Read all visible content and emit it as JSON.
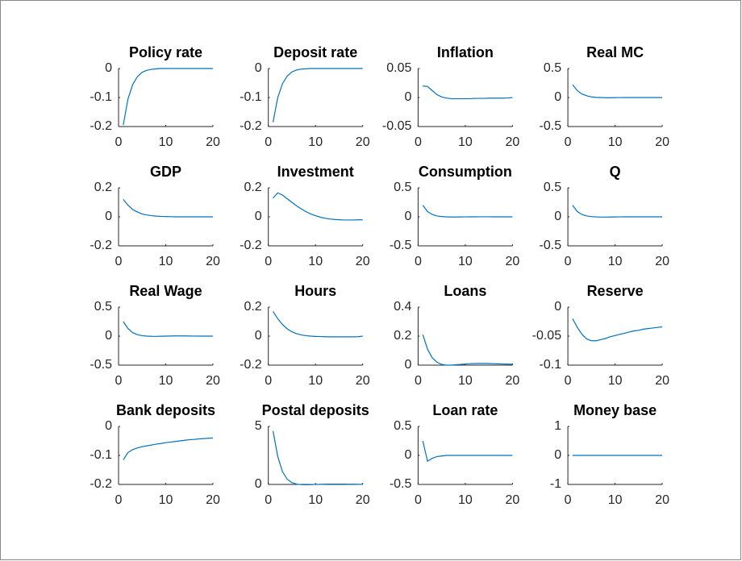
{
  "chart_data": [
    {
      "type": "line",
      "title": "Policy rate",
      "x": [
        1,
        2,
        3,
        4,
        5,
        6,
        7,
        8,
        9,
        10,
        11,
        12,
        13,
        14,
        15,
        16,
        17,
        18,
        19,
        20
      ],
      "values": [
        -0.195,
        -0.105,
        -0.055,
        -0.028,
        -0.013,
        -0.006,
        -0.003,
        -0.001,
        0,
        0,
        0,
        0,
        0,
        0,
        0,
        0,
        0,
        0,
        0,
        0
      ],
      "color": "#0072bd",
      "xlim": [
        0,
        20
      ],
      "xticks": [
        0,
        10,
        20
      ],
      "ylim": [
        -0.2,
        0
      ],
      "yticks": [
        -0.2,
        -0.1,
        0
      ]
    },
    {
      "type": "line",
      "title": "Deposit rate",
      "x": [
        1,
        2,
        3,
        4,
        5,
        6,
        7,
        8,
        9,
        10,
        11,
        12,
        13,
        14,
        15,
        16,
        17,
        18,
        19,
        20
      ],
      "values": [
        -0.185,
        -0.1,
        -0.052,
        -0.026,
        -0.012,
        -0.005,
        -0.002,
        -0.001,
        0,
        0,
        0,
        0,
        0,
        0,
        0,
        0,
        0,
        0,
        0,
        0
      ],
      "color": "#0072bd",
      "xlim": [
        0,
        20
      ],
      "xticks": [
        0,
        10,
        20
      ],
      "ylim": [
        -0.2,
        0
      ],
      "yticks": [
        -0.2,
        -0.1,
        0
      ]
    },
    {
      "type": "line",
      "title": "Inflation",
      "x": [
        1,
        2,
        3,
        4,
        5,
        6,
        7,
        8,
        9,
        10,
        11,
        12,
        13,
        14,
        15,
        16,
        17,
        18,
        19,
        20
      ],
      "values": [
        0.02,
        0.019,
        0.012,
        0.005,
        0.001,
        -0.001,
        -0.002,
        -0.002,
        -0.002,
        -0.002,
        -0.002,
        -0.0015,
        -0.0015,
        -0.0015,
        -0.001,
        -0.001,
        -0.001,
        -0.001,
        -0.0008,
        0
      ],
      "color": "#0072bd",
      "xlim": [
        0,
        20
      ],
      "xticks": [
        0,
        10,
        20
      ],
      "ylim": [
        -0.05,
        0.05
      ],
      "yticks": [
        -0.05,
        0,
        0.05
      ]
    },
    {
      "type": "line",
      "title": "Real MC",
      "x": [
        1,
        2,
        3,
        4,
        5,
        6,
        7,
        8,
        9,
        10,
        11,
        12,
        13,
        14,
        15,
        16,
        17,
        18,
        19,
        20
      ],
      "values": [
        0.22,
        0.12,
        0.06,
        0.03,
        0.01,
        0.003,
        0,
        -0.003,
        -0.003,
        -0.002,
        -0.001,
        0,
        0,
        0,
        0,
        0,
        0,
        0,
        0,
        0
      ],
      "color": "#0072bd",
      "xlim": [
        0,
        20
      ],
      "xticks": [
        0,
        10,
        20
      ],
      "ylim": [
        -0.5,
        0.5
      ],
      "yticks": [
        -0.5,
        0,
        0.5
      ]
    },
    {
      "type": "line",
      "title": "GDP",
      "x": [
        1,
        2,
        3,
        4,
        5,
        6,
        7,
        8,
        9,
        10,
        11,
        12,
        13,
        14,
        15,
        16,
        17,
        18,
        19,
        20
      ],
      "values": [
        0.12,
        0.08,
        0.05,
        0.033,
        0.02,
        0.013,
        0.008,
        0.005,
        0.003,
        0.002,
        0.001,
        0,
        0,
        0,
        0,
        0,
        0,
        0,
        0,
        0
      ],
      "color": "#0072bd",
      "xlim": [
        0,
        20
      ],
      "xticks": [
        0,
        10,
        20
      ],
      "ylim": [
        -0.2,
        0.2
      ],
      "yticks": [
        -0.2,
        0,
        0.2
      ]
    },
    {
      "type": "line",
      "title": "Investment",
      "x": [
        1,
        2,
        3,
        4,
        5,
        6,
        7,
        8,
        9,
        10,
        11,
        12,
        13,
        14,
        15,
        16,
        17,
        18,
        19,
        20
      ],
      "values": [
        0.13,
        0.165,
        0.15,
        0.125,
        0.1,
        0.075,
        0.055,
        0.035,
        0.02,
        0.008,
        -0.002,
        -0.01,
        -0.015,
        -0.018,
        -0.02,
        -0.022,
        -0.022,
        -0.022,
        -0.021,
        -0.02
      ],
      "color": "#0072bd",
      "xlim": [
        0,
        20
      ],
      "xticks": [
        0,
        10,
        20
      ],
      "ylim": [
        -0.2,
        0.2
      ],
      "yticks": [
        -0.2,
        0,
        0.2
      ]
    },
    {
      "type": "line",
      "title": "Consumption",
      "x": [
        1,
        2,
        3,
        4,
        5,
        6,
        7,
        8,
        9,
        10,
        11,
        12,
        13,
        14,
        15,
        16,
        17,
        18,
        19,
        20
      ],
      "values": [
        0.2,
        0.09,
        0.04,
        0.015,
        0.005,
        0,
        -0.003,
        -0.003,
        -0.002,
        -0.001,
        0,
        0,
        0.001,
        0.001,
        0.001,
        0,
        0,
        0,
        0,
        0
      ],
      "color": "#0072bd",
      "xlim": [
        0,
        20
      ],
      "xticks": [
        0,
        10,
        20
      ],
      "ylim": [
        -0.5,
        0.5
      ],
      "yticks": [
        -0.5,
        0,
        0.5
      ]
    },
    {
      "type": "line",
      "title": "Q",
      "x": [
        1,
        2,
        3,
        4,
        5,
        6,
        7,
        8,
        9,
        10,
        11,
        12,
        13,
        14,
        15,
        16,
        17,
        18,
        19,
        20
      ],
      "values": [
        0.2,
        0.09,
        0.04,
        0.015,
        0.004,
        -0.002,
        -0.004,
        -0.004,
        -0.003,
        -0.002,
        -0.001,
        0,
        0,
        0,
        0,
        0,
        0,
        0,
        0,
        0
      ],
      "color": "#0072bd",
      "xlim": [
        0,
        20
      ],
      "xticks": [
        0,
        10,
        20
      ],
      "ylim": [
        -0.5,
        0.5
      ],
      "yticks": [
        -0.5,
        0,
        0.5
      ]
    },
    {
      "type": "line",
      "title": "Real Wage",
      "x": [
        1,
        2,
        3,
        4,
        5,
        6,
        7,
        8,
        9,
        10,
        11,
        12,
        13,
        14,
        15,
        16,
        17,
        18,
        19,
        20
      ],
      "values": [
        0.25,
        0.13,
        0.06,
        0.025,
        0.008,
        0,
        -0.003,
        -0.004,
        -0.002,
        0,
        0.002,
        0.003,
        0.003,
        0.003,
        0.002,
        0.001,
        0,
        0,
        0,
        0
      ],
      "color": "#0072bd",
      "xlim": [
        0,
        20
      ],
      "xticks": [
        0,
        10,
        20
      ],
      "ylim": [
        -0.5,
        0.5
      ],
      "yticks": [
        -0.5,
        0,
        0.5
      ]
    },
    {
      "type": "line",
      "title": "Hours",
      "x": [
        1,
        2,
        3,
        4,
        5,
        6,
        7,
        8,
        9,
        10,
        11,
        12,
        13,
        14,
        15,
        16,
        17,
        18,
        19,
        20
      ],
      "values": [
        0.17,
        0.12,
        0.08,
        0.05,
        0.03,
        0.017,
        0.008,
        0.003,
        0,
        -0.002,
        -0.003,
        -0.004,
        -0.005,
        -0.005,
        -0.005,
        -0.005,
        -0.005,
        -0.005,
        -0.004,
        0
      ],
      "color": "#0072bd",
      "xlim": [
        0,
        20
      ],
      "xticks": [
        0,
        10,
        20
      ],
      "ylim": [
        -0.2,
        0.2
      ],
      "yticks": [
        -0.2,
        0,
        0.2
      ]
    },
    {
      "type": "line",
      "title": "Loans",
      "x": [
        1,
        2,
        3,
        4,
        5,
        6,
        7,
        8,
        9,
        10,
        11,
        12,
        13,
        14,
        15,
        16,
        17,
        18,
        19,
        20
      ],
      "values": [
        0.21,
        0.11,
        0.05,
        0.02,
        0.005,
        0,
        0,
        0.003,
        0.005,
        0.008,
        0.01,
        0.011,
        0.012,
        0.012,
        0.011,
        0.01,
        0.009,
        0.008,
        0.007,
        0.006
      ],
      "color": "#0072bd",
      "xlim": [
        0,
        20
      ],
      "xticks": [
        0,
        10,
        20
      ],
      "ylim": [
        0,
        0.4
      ],
      "yticks": [
        0,
        0.2,
        0.4
      ]
    },
    {
      "type": "line",
      "title": "Reserve",
      "x": [
        1,
        2,
        3,
        4,
        5,
        6,
        7,
        8,
        9,
        10,
        11,
        12,
        13,
        14,
        15,
        16,
        17,
        18,
        19,
        20
      ],
      "values": [
        -0.02,
        -0.035,
        -0.047,
        -0.055,
        -0.058,
        -0.058,
        -0.056,
        -0.054,
        -0.051,
        -0.049,
        -0.047,
        -0.045,
        -0.043,
        -0.041,
        -0.04,
        -0.038,
        -0.037,
        -0.036,
        -0.035,
        -0.034
      ],
      "color": "#0072bd",
      "xlim": [
        0,
        20
      ],
      "xticks": [
        0,
        10,
        20
      ],
      "ylim": [
        -0.1,
        0
      ],
      "yticks": [
        -0.1,
        -0.05,
        0
      ]
    },
    {
      "type": "line",
      "title": "Bank deposits",
      "x": [
        1,
        2,
        3,
        4,
        5,
        6,
        7,
        8,
        9,
        10,
        11,
        12,
        13,
        14,
        15,
        16,
        17,
        18,
        19,
        20
      ],
      "values": [
        -0.115,
        -0.09,
        -0.08,
        -0.074,
        -0.07,
        -0.067,
        -0.064,
        -0.061,
        -0.059,
        -0.056,
        -0.054,
        -0.052,
        -0.05,
        -0.048,
        -0.046,
        -0.045,
        -0.043,
        -0.042,
        -0.041,
        -0.04
      ],
      "color": "#0072bd",
      "xlim": [
        0,
        20
      ],
      "xticks": [
        0,
        10,
        20
      ],
      "ylim": [
        -0.2,
        0
      ],
      "yticks": [
        -0.2,
        -0.1,
        0
      ]
    },
    {
      "type": "line",
      "title": "Postal deposits",
      "x": [
        1,
        2,
        3,
        4,
        5,
        6,
        7,
        8,
        9,
        10,
        11,
        12,
        13,
        14,
        15,
        16,
        17,
        18,
        19,
        20
      ],
      "values": [
        4.6,
        2.4,
        1.1,
        0.45,
        0.15,
        0.03,
        -0.02,
        -0.03,
        -0.02,
        0,
        0.01,
        0.02,
        0.03,
        0.03,
        0.03,
        0.03,
        0.02,
        0.02,
        0.01,
        0.01
      ],
      "color": "#0072bd",
      "xlim": [
        0,
        20
      ],
      "xticks": [
        0,
        10,
        20
      ],
      "ylim": [
        0,
        5
      ],
      "yticks": [
        0,
        5
      ]
    },
    {
      "type": "line",
      "title": "Loan rate",
      "x": [
        1,
        2,
        3,
        4,
        5,
        6,
        7,
        8,
        9,
        10,
        11,
        12,
        13,
        14,
        15,
        16,
        17,
        18,
        19,
        20
      ],
      "values": [
        0.25,
        -0.1,
        -0.05,
        -0.02,
        -0.01,
        0,
        0,
        0,
        0,
        0,
        0,
        0,
        0,
        0,
        0,
        0,
        0,
        0,
        0,
        0
      ],
      "color": "#0072bd",
      "xlim": [
        0,
        20
      ],
      "xticks": [
        0,
        10,
        20
      ],
      "ylim": [
        -0.5,
        0.5
      ],
      "yticks": [
        -0.5,
        0,
        0.5
      ]
    },
    {
      "type": "line",
      "title": "Money base",
      "x": [
        1,
        2,
        3,
        4,
        5,
        6,
        7,
        8,
        9,
        10,
        11,
        12,
        13,
        14,
        15,
        16,
        17,
        18,
        19,
        20
      ],
      "values": [
        0,
        0,
        0,
        0,
        0,
        0,
        0,
        0,
        0,
        0,
        0,
        0,
        0,
        0,
        0,
        0,
        0,
        0,
        0,
        0
      ],
      "color": "#0072bd",
      "xlim": [
        0,
        20
      ],
      "xticks": [
        0,
        10,
        20
      ],
      "ylim": [
        -1,
        1
      ],
      "yticks": [
        -1,
        0,
        1
      ]
    }
  ]
}
